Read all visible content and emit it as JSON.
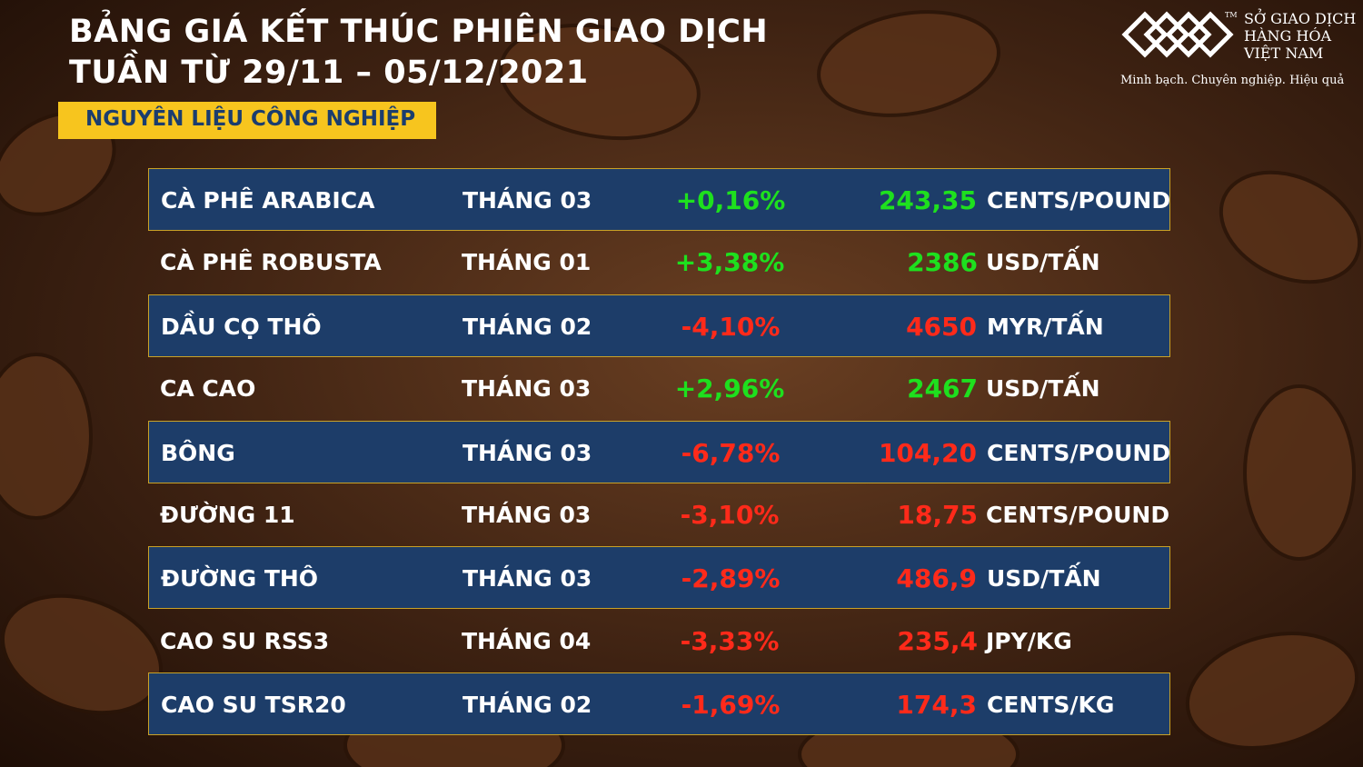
{
  "header": {
    "title_lines": [
      "BẢNG GIÁ KẾT THÚC PHIÊN GIAO DỊCH",
      "TUẦN TỪ 29/11 – 05/12/2021"
    ],
    "section": "NGUYÊN LIỆU CÔNG NGHIỆP"
  },
  "logo": {
    "tm": "TM",
    "name_lines": [
      "SỞ GIAO DỊCH",
      "HÀNG HÓA",
      "VIỆT NAM"
    ],
    "slogan": "Minh bạch. Chuyên nghiệp. Hiệu quả"
  },
  "table": {
    "rows": [
      [
        "CÀ PHÊ ARABICA",
        "THÁNG 03",
        "+0,16%",
        "243,35",
        "CENTS/POUND"
      ],
      [
        "CÀ PHÊ ROBUSTA",
        "THÁNG 01",
        "+3,38%",
        "2386",
        "USD/TẤN"
      ],
      [
        "DẦU CỌ THÔ",
        "THÁNG 02",
        "-4,10%",
        "4650",
        "MYR/TẤN"
      ],
      [
        "CA CAO",
        "THÁNG 03",
        "+2,96%",
        "2467",
        "USD/TẤN"
      ],
      [
        "BÔNG",
        "THÁNG 03",
        "-6,78%",
        "104,20",
        "CENTS/POUND"
      ],
      [
        "ĐƯỜNG 11",
        "THÁNG 03",
        "-3,10%",
        "18,75",
        "CENTS/POUND"
      ],
      [
        "ĐƯỜNG THÔ",
        "THÁNG 03",
        "-2,89%",
        "486,9",
        "USD/TẤN"
      ],
      [
        "CAO SU RSS3",
        "THÁNG 04",
        "-3,33%",
        "235,4",
        "JPY/KG"
      ],
      [
        "CAO SU TSR20",
        "THÁNG 02",
        "-1,69%",
        "174,3",
        "CENTS/KG"
      ]
    ]
  }
}
